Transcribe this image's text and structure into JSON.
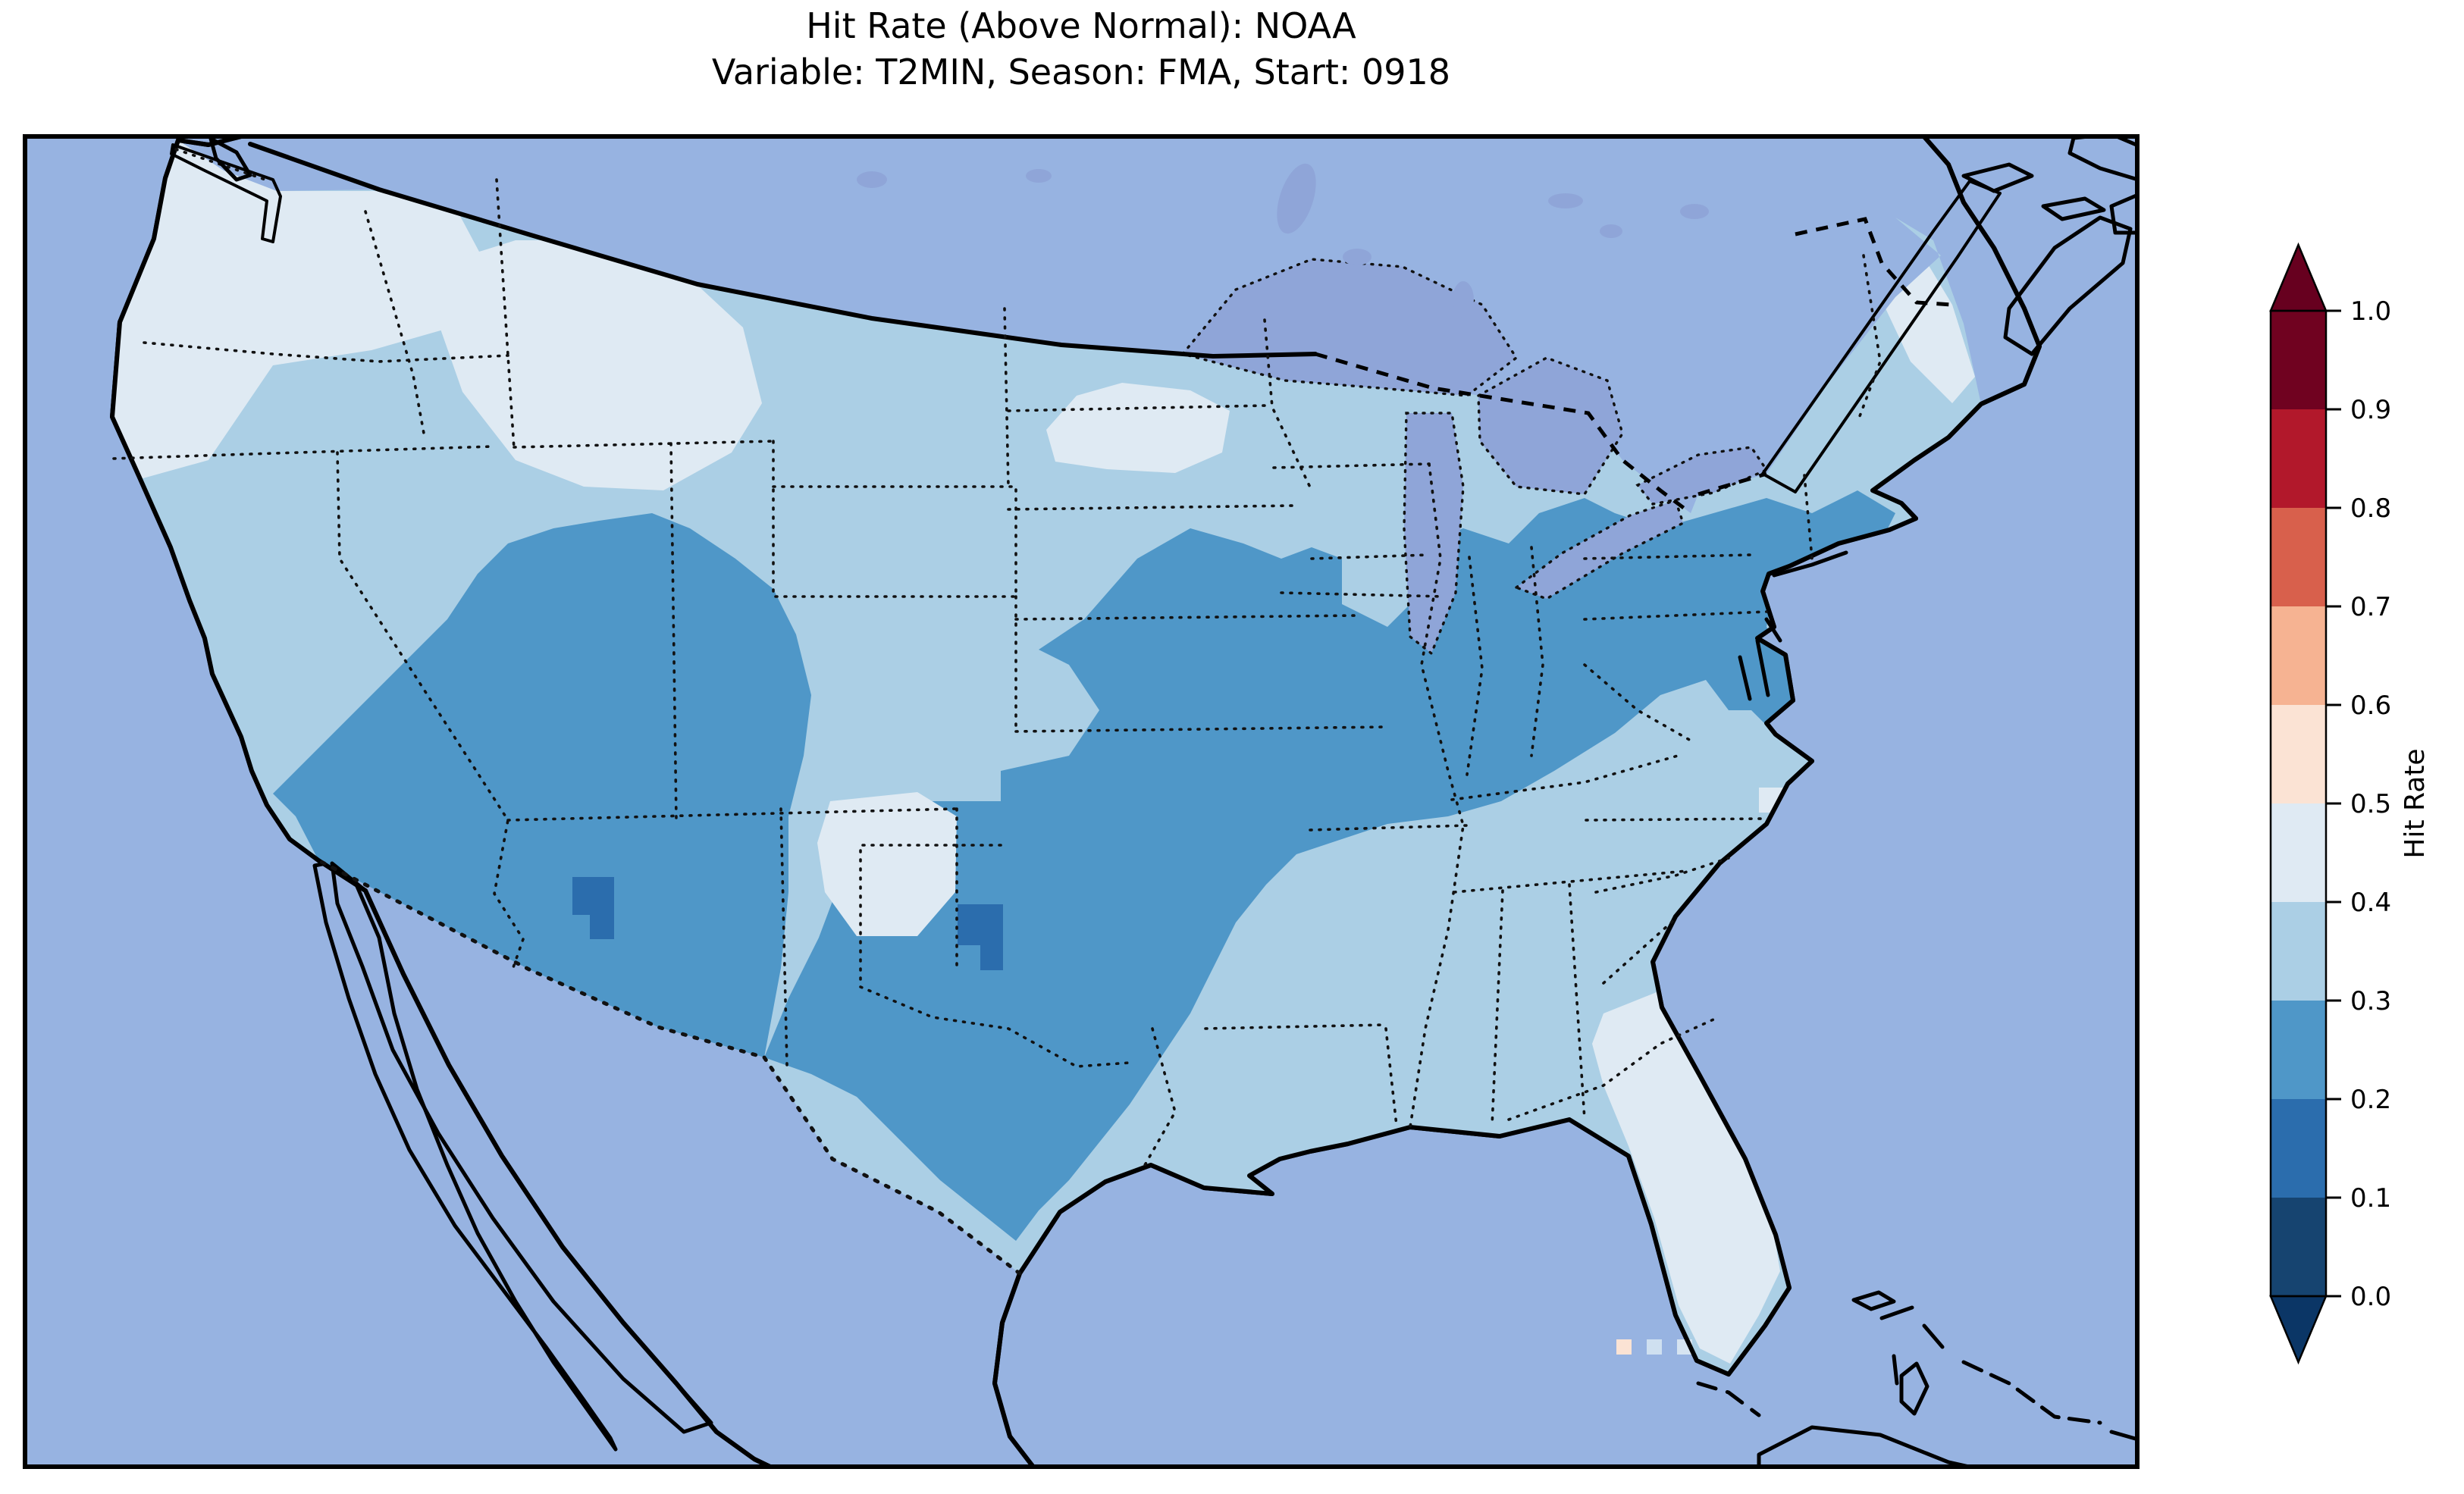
{
  "title": {
    "line1": "Hit Rate (Above Normal): NOAA",
    "line2": "Variable: T2MIN, Season: FMA, Start: 0918"
  },
  "map": {
    "ocean_color": "#97b3e1",
    "lake_color": "#8fa5d8",
    "land_color": "#eeebd6",
    "coast_color": "#000000",
    "state_border_style": "dotted",
    "country_border_style": "dashed"
  },
  "colorbar": {
    "label": "Hit Rate",
    "orientation": "vertical",
    "ticks": [
      "0.0",
      "0.1",
      "0.2",
      "0.3",
      "0.4",
      "0.5",
      "0.6",
      "0.7",
      "0.8",
      "0.9",
      "1.0"
    ],
    "tick_values": [
      0.0,
      0.1,
      0.2,
      0.3,
      0.4,
      0.5,
      0.6,
      0.7,
      0.8,
      0.9,
      1.0
    ],
    "under_color": "#0b3666",
    "over_color": "#67001f",
    "bins": [
      {
        "range": "0.0-0.1",
        "color": "#164470"
      },
      {
        "range": "0.1-0.2",
        "color": "#2b6dad"
      },
      {
        "range": "0.2-0.3",
        "color": "#4f97c8"
      },
      {
        "range": "0.3-0.4",
        "color": "#abcfe5"
      },
      {
        "range": "0.4-0.5",
        "color": "#dfeaf3"
      },
      {
        "range": "0.5-0.6",
        "color": "#fbe3d4"
      },
      {
        "range": "0.6-0.7",
        "color": "#f6b392"
      },
      {
        "range": "0.7-0.8",
        "color": "#d8604c"
      },
      {
        "range": "0.8-0.9",
        "color": "#b2182b"
      },
      {
        "range": "0.9-1.0",
        "color": "#700220"
      }
    ]
  },
  "chart_data": {
    "type": "heatmap",
    "subtype": "choropleth_map",
    "title": "Hit Rate (Above Normal): NOAA",
    "subtitle": "Variable: T2MIN, Season: FMA, Start: 0918",
    "metric": "Hit Rate",
    "source": "NOAA",
    "variable": "T2MIN",
    "season": "FMA",
    "start": "0918",
    "value_range": [
      0.0,
      1.0
    ],
    "bin_width": 0.1,
    "extent": "Continental United States with surrounding Canada, Mexico, Atlantic and Pacific",
    "legend_position": "right",
    "regions": [
      {
        "name": "conus-base (most of Southeast, Plains, coastal Carolinas, Texas border strip)",
        "value_range": [
          0.3,
          0.4
        ],
        "color": "#abcfe5"
      },
      {
        "name": "pacific-northwest (Washington, west Oregon, NW California coast)",
        "value_range": [
          0.4,
          0.5
        ],
        "color": "#dfeaf3"
      },
      {
        "name": "northern-rockies (Idaho, west Montana, NW Wyoming)",
        "value_range": [
          0.4,
          0.5
        ],
        "color": "#dfeaf3"
      },
      {
        "name": "upper-midwest (NE Minnesota, NW Wisconsin)",
        "value_range": [
          0.4,
          0.5
        ],
        "color": "#dfeaf3"
      },
      {
        "name": "northern-maine",
        "value_range": [
          0.4,
          0.5
        ],
        "color": "#dfeaf3"
      },
      {
        "name": "north-central-new-mexico",
        "value_range": [
          0.4,
          0.5
        ],
        "color": "#dfeaf3"
      },
      {
        "name": "florida-peninsula and SE Georgia",
        "value_range": [
          0.4,
          0.5
        ],
        "color": "#dfeaf3"
      },
      {
        "name": "outer-banks-cell (coastal North Carolina)",
        "value_range": [
          0.4,
          0.5
        ],
        "color": "#dfeaf3"
      },
      {
        "name": "southwest-interior (S California, Nevada, Utah, Arizona, New Mexico, W Colorado)",
        "value_range": [
          0.2,
          0.3
        ],
        "color": "#4f97c8"
      },
      {
        "name": "southcentral-to-northeast band (Texas, Oklahoma, Missouri, Arkansas, Ohio Valley, Appalachia, Mid-Atlantic, S New England)",
        "value_range": [
          0.2,
          0.3
        ],
        "color": "#4f97c8"
      },
      {
        "name": "arizona-minimum cells",
        "value_range": [
          0.1,
          0.2
        ],
        "color": "#2b6dad"
      },
      {
        "name": "oklahoma-minimum cells",
        "value_range": [
          0.1,
          0.2
        ],
        "color": "#2b6dad"
      },
      {
        "name": "florida-keys-cell-1",
        "value_range": [
          0.5,
          0.6
        ],
        "color": "#fbe3d4"
      },
      {
        "name": "florida-keys-cell-2",
        "value_range": [
          0.4,
          0.5
        ],
        "color": "#cfe0f0"
      },
      {
        "name": "florida-keys-cell-3",
        "value_range": [
          0.4,
          0.5
        ],
        "color": "#d6e4f1"
      }
    ]
  }
}
